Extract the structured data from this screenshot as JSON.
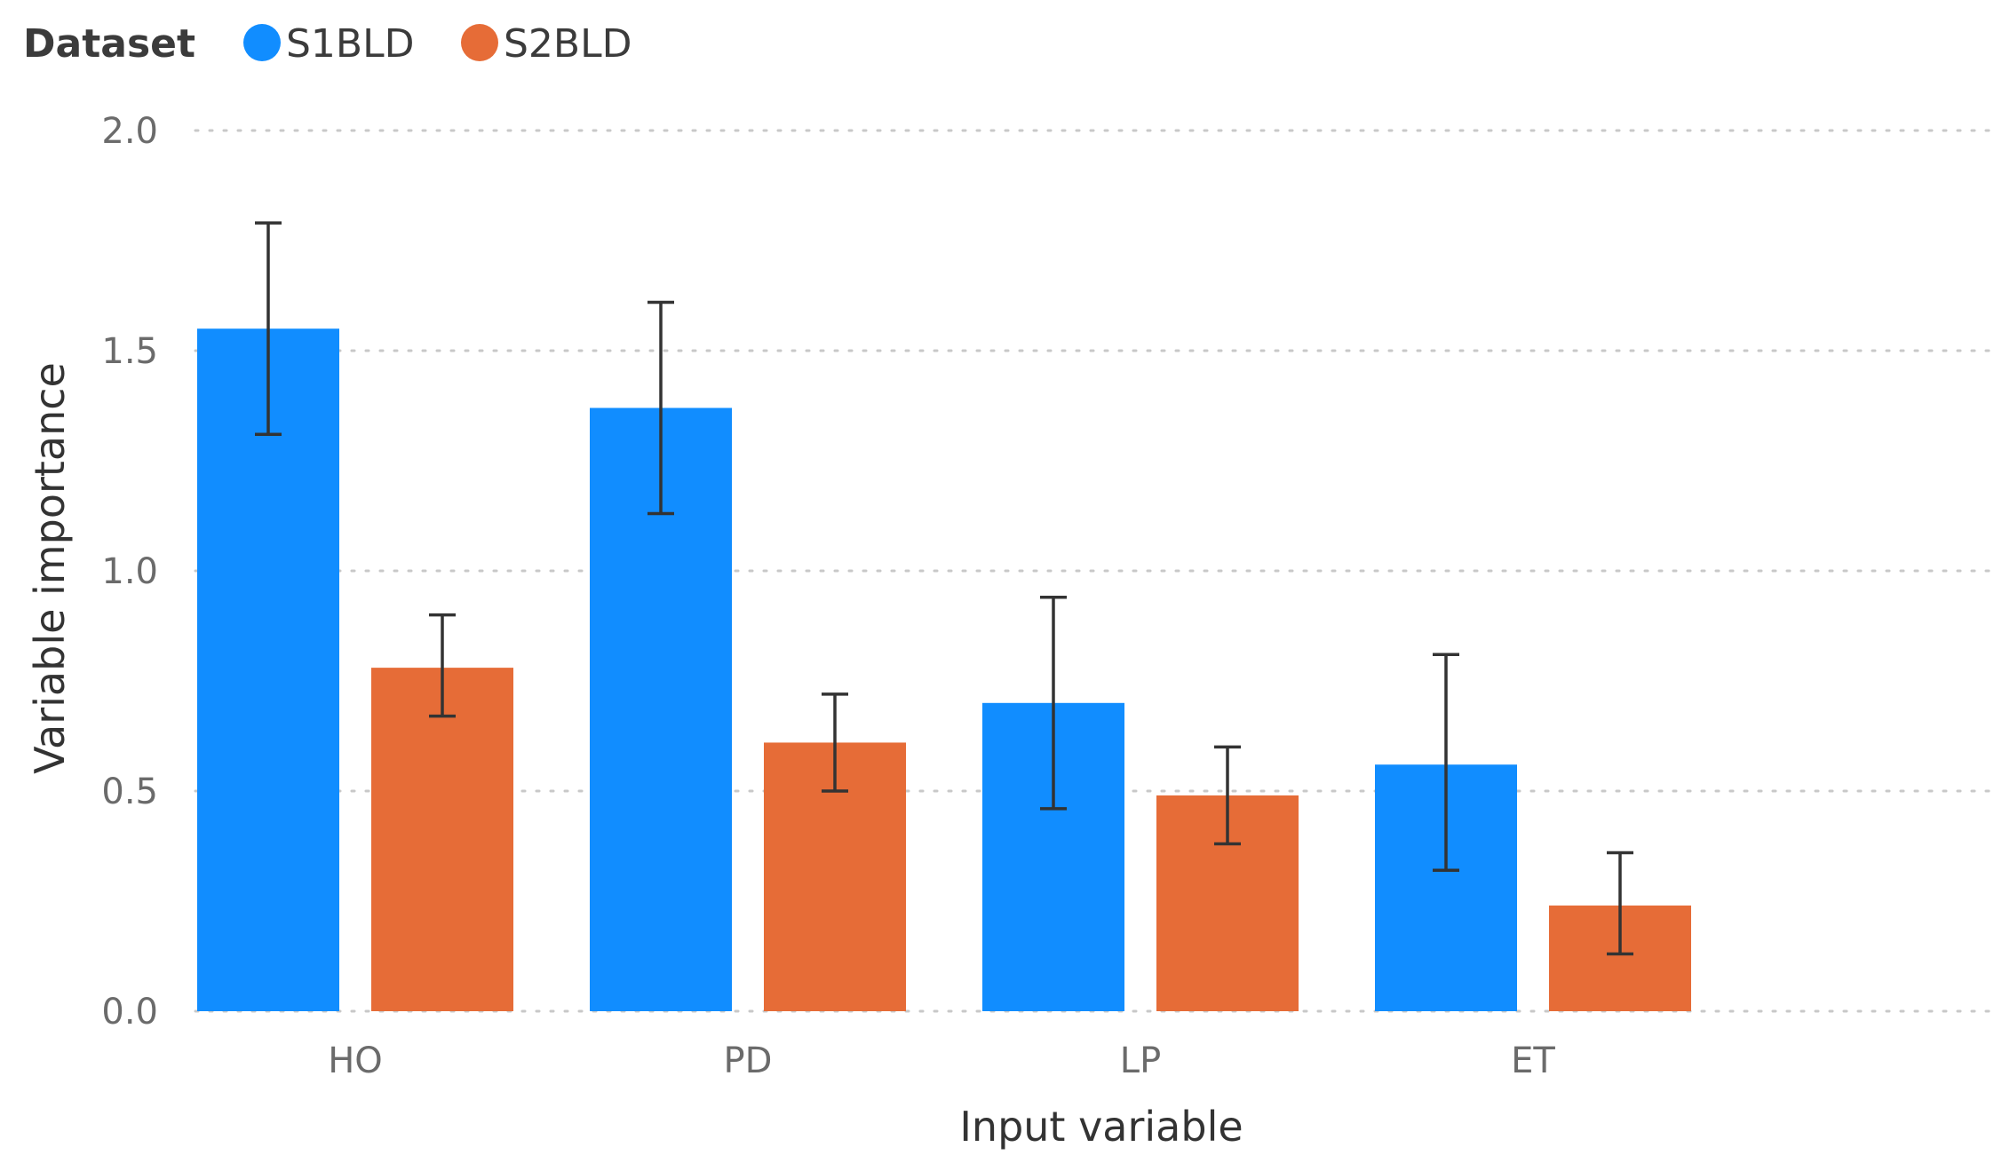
{
  "legend": {
    "title": "Dataset"
  },
  "colors": {
    "S1BLD": "#118dff",
    "S2BLD": "#e66c37",
    "error_bar": "#333333",
    "grid": "#c8c8c8"
  },
  "chart_data": {
    "type": "bar",
    "title": "",
    "xlabel": "Input variable",
    "ylabel": "Variable importance",
    "ylim": [
      0,
      2
    ],
    "yticks": [
      "0.0",
      "0.5",
      "1.0",
      "1.5",
      "2.0"
    ],
    "grid": true,
    "legend_position": "top-left",
    "categories": [
      "HO",
      "PD",
      "LP",
      "ET"
    ],
    "series": [
      {
        "name": "S1BLD",
        "values": [
          1.55,
          1.37,
          0.7,
          0.56
        ],
        "error_low": [
          1.31,
          1.13,
          0.46,
          0.32
        ],
        "error_high": [
          1.79,
          1.61,
          0.94,
          0.81
        ]
      },
      {
        "name": "S2BLD",
        "values": [
          0.78,
          0.61,
          0.49,
          0.24
        ],
        "error_low": [
          0.67,
          0.5,
          0.38,
          0.13
        ],
        "error_high": [
          0.9,
          0.72,
          0.6,
          0.36
        ]
      }
    ]
  }
}
